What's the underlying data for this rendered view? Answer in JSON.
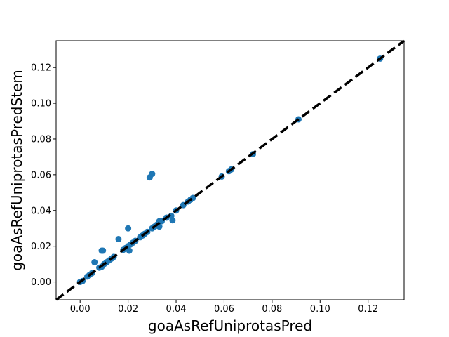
{
  "chart_data": {
    "type": "scatter",
    "title": "",
    "xlabel": "goaAsRefUniprotasPred",
    "ylabel": "goaAsRefUniprotasPredStem",
    "xlim": [
      -0.01,
      0.135
    ],
    "ylim": [
      -0.01,
      0.135
    ],
    "grid": false,
    "legend": "none",
    "x_ticks": [
      0.0,
      0.02,
      0.04,
      0.06,
      0.08,
      0.1,
      0.12
    ],
    "x_tick_labels": [
      "0.00",
      "0.02",
      "0.04",
      "0.06",
      "0.08",
      "0.10",
      "0.12"
    ],
    "y_ticks": [
      0.0,
      0.02,
      0.04,
      0.06,
      0.08,
      0.1,
      0.12
    ],
    "y_tick_labels": [
      "0.00",
      "0.02",
      "0.04",
      "0.06",
      "0.08",
      "0.10",
      "0.12"
    ],
    "reference_line": {
      "style": "dashed",
      "color": "#000000",
      "from": [
        -0.01,
        -0.01
      ],
      "to": [
        0.135,
        0.135
      ]
    },
    "series": [
      {
        "color": "#1f77b4",
        "points": [
          [
            0.0,
            0.0
          ],
          [
            0.001,
            0.0005
          ],
          [
            0.003,
            0.003
          ],
          [
            0.004,
            0.004
          ],
          [
            0.005,
            0.005
          ],
          [
            0.006,
            0.011
          ],
          [
            0.008,
            0.008
          ],
          [
            0.009,
            0.0085
          ],
          [
            0.009,
            0.0175
          ],
          [
            0.0095,
            0.0175
          ],
          [
            0.01,
            0.01
          ],
          [
            0.011,
            0.011
          ],
          [
            0.012,
            0.012
          ],
          [
            0.013,
            0.013
          ],
          [
            0.014,
            0.014
          ],
          [
            0.016,
            0.024
          ],
          [
            0.018,
            0.018
          ],
          [
            0.019,
            0.019
          ],
          [
            0.02,
            0.02
          ],
          [
            0.02,
            0.03
          ],
          [
            0.0205,
            0.0175
          ],
          [
            0.021,
            0.021
          ],
          [
            0.022,
            0.022
          ],
          [
            0.023,
            0.023
          ],
          [
            0.025,
            0.025
          ],
          [
            0.026,
            0.026
          ],
          [
            0.027,
            0.027
          ],
          [
            0.028,
            0.028
          ],
          [
            0.029,
            0.0585
          ],
          [
            0.03,
            0.0605
          ],
          [
            0.03,
            0.03
          ],
          [
            0.031,
            0.031
          ],
          [
            0.032,
            0.032
          ],
          [
            0.033,
            0.031
          ],
          [
            0.033,
            0.034
          ],
          [
            0.034,
            0.034
          ],
          [
            0.036,
            0.036
          ],
          [
            0.038,
            0.037
          ],
          [
            0.0385,
            0.0345
          ],
          [
            0.04,
            0.04
          ],
          [
            0.043,
            0.043
          ],
          [
            0.045,
            0.045
          ],
          [
            0.046,
            0.046
          ],
          [
            0.047,
            0.047
          ],
          [
            0.059,
            0.059
          ],
          [
            0.062,
            0.062
          ],
          [
            0.063,
            0.063
          ],
          [
            0.072,
            0.0715
          ],
          [
            0.091,
            0.091
          ],
          [
            0.125,
            0.125
          ]
        ]
      }
    ]
  }
}
